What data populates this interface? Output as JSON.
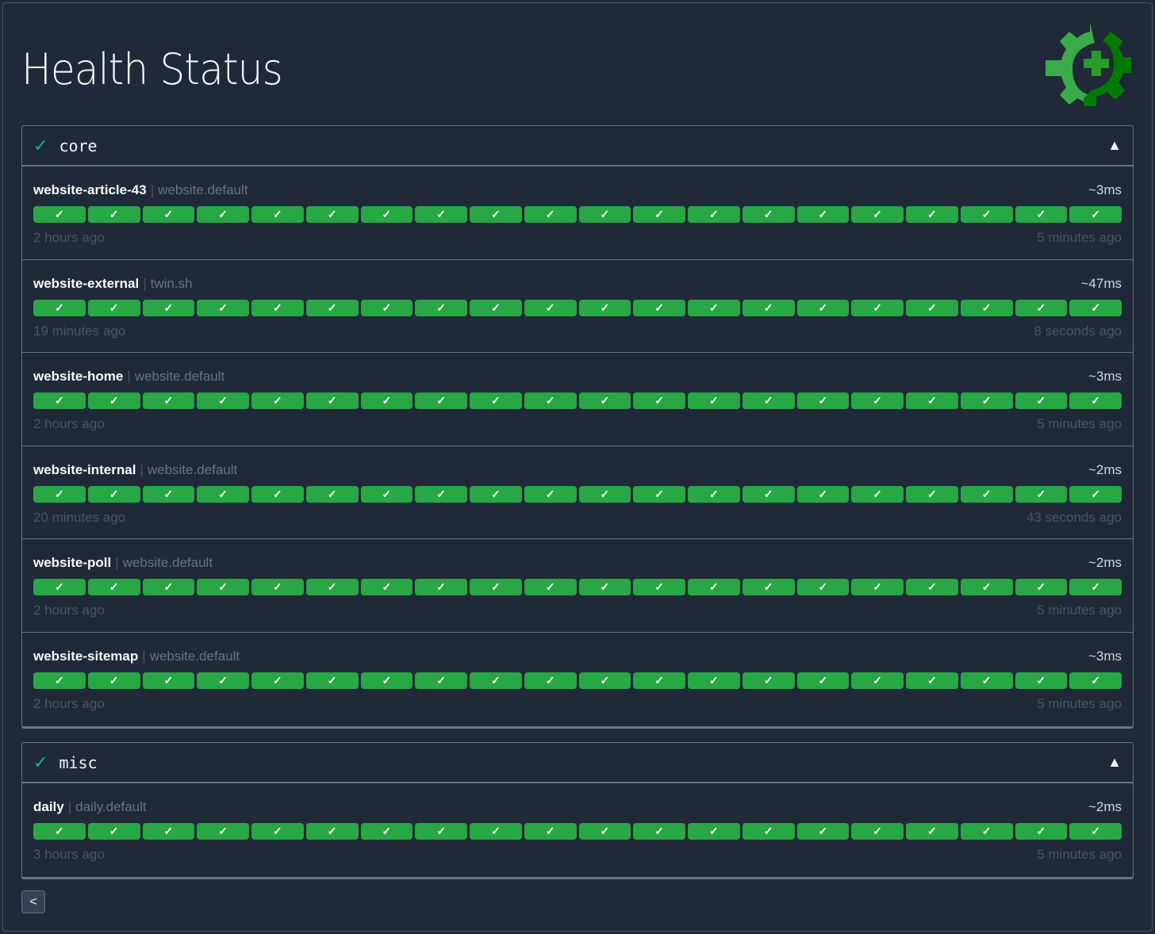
{
  "page": {
    "title": "Health Status",
    "logo": "gear-health-logo",
    "back_label": "<"
  },
  "colors": {
    "background": "#1f2937",
    "success": "#28a745",
    "group_check": "#10b981",
    "logo_light": "#3bab4a",
    "logo_dark": "#007a00"
  },
  "groups": [
    {
      "name": "core",
      "status_icon": "✓",
      "toggle_icon": "▲",
      "endpoints": [
        {
          "name": "website-article-43",
          "group": "website.default",
          "response_time": "~3ms",
          "oldest": "2 hours ago",
          "newest": "5 minutes ago",
          "results_success": 20
        },
        {
          "name": "website-external",
          "group": "twin.sh",
          "response_time": "~47ms",
          "oldest": "19 minutes ago",
          "newest": "8 seconds ago",
          "results_success": 20
        },
        {
          "name": "website-home",
          "group": "website.default",
          "response_time": "~3ms",
          "oldest": "2 hours ago",
          "newest": "5 minutes ago",
          "results_success": 20
        },
        {
          "name": "website-internal",
          "group": "website.default",
          "response_time": "~2ms",
          "oldest": "20 minutes ago",
          "newest": "43 seconds ago",
          "results_success": 20
        },
        {
          "name": "website-poll",
          "group": "website.default",
          "response_time": "~2ms",
          "oldest": "2 hours ago",
          "newest": "5 minutes ago",
          "results_success": 20
        },
        {
          "name": "website-sitemap",
          "group": "website.default",
          "response_time": "~3ms",
          "oldest": "2 hours ago",
          "newest": "5 minutes ago",
          "results_success": 20
        }
      ]
    },
    {
      "name": "misc",
      "status_icon": "✓",
      "toggle_icon": "▲",
      "endpoints": [
        {
          "name": "daily",
          "group": "daily.default",
          "response_time": "~2ms",
          "oldest": "3 hours ago",
          "newest": "5 minutes ago",
          "results_success": 20
        }
      ]
    }
  ]
}
